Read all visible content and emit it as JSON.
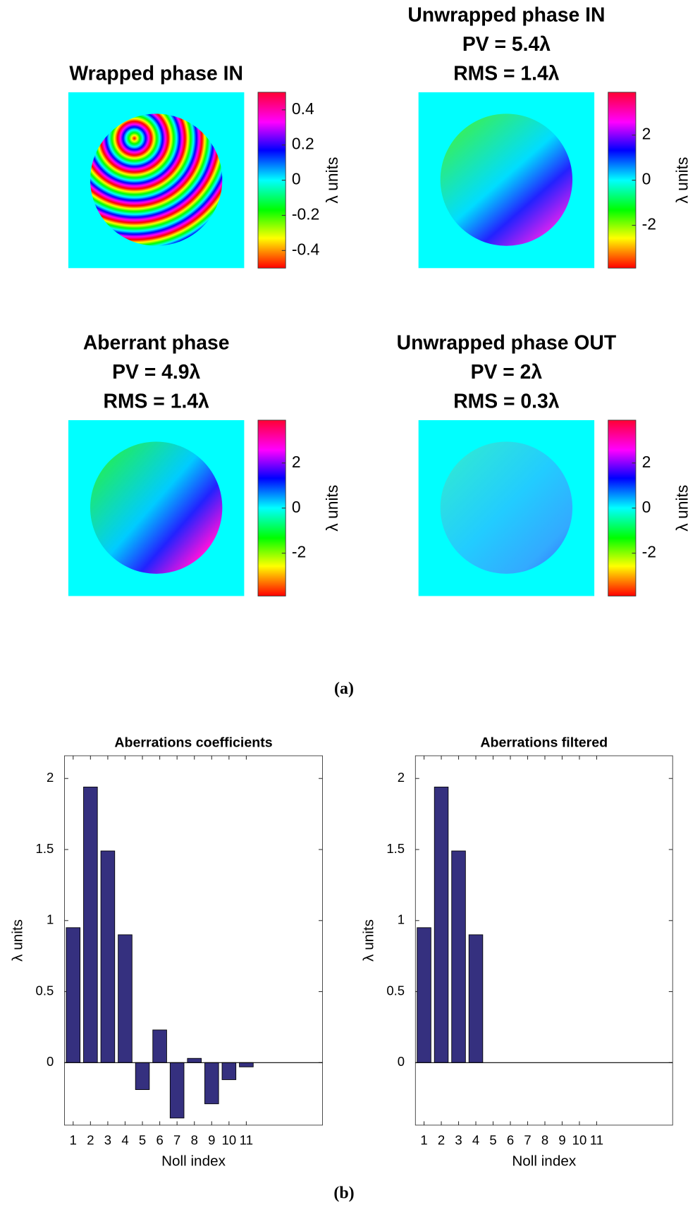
{
  "caption_a": "(a)",
  "caption_b": "(b)",
  "chart_data": [
    {
      "type": "heatmap",
      "title": [
        "Wrapped phase IN"
      ],
      "colorbar_label": "λ units",
      "clim": [
        -0.5,
        0.5
      ],
      "cticks": [
        -0.4,
        -0.2,
        0,
        0.2,
        0.4
      ]
    },
    {
      "type": "heatmap",
      "title": [
        "Unwrapped phase IN",
        "PV = 5.4λ",
        "RMS = 1.4λ"
      ],
      "colorbar_label": "λ units",
      "clim": [
        -3.9,
        3.9
      ],
      "cticks": [
        -2,
        0,
        2
      ]
    },
    {
      "type": "heatmap",
      "title": [
        "Aberrant phase",
        "PV = 4.9λ",
        "RMS = 1.4λ"
      ],
      "colorbar_label": "λ units",
      "clim": [
        -3.9,
        3.9
      ],
      "cticks": [
        -2,
        0,
        2
      ]
    },
    {
      "type": "heatmap",
      "title": [
        "Unwrapped phase OUT",
        "PV = 2λ",
        "RMS = 0.3λ"
      ],
      "colorbar_label": "λ units",
      "clim": [
        -3.9,
        3.9
      ],
      "cticks": [
        -2,
        0,
        2
      ]
    },
    {
      "type": "bar",
      "title": "Aberrations coefficients",
      "x_label": "Noll index",
      "y_label": "λ units",
      "color": "#35307f",
      "x": [
        1,
        2,
        3,
        4,
        5,
        6,
        7,
        8,
        9,
        10,
        11
      ],
      "values": [
        0.95,
        1.94,
        1.49,
        0.9,
        -0.19,
        0.23,
        -0.39,
        0.03,
        -0.29,
        -0.12,
        -0.03
      ],
      "xlim": [
        0.5,
        15.4
      ],
      "xticks": [
        1,
        2,
        3,
        4,
        5,
        6,
        7,
        8,
        9,
        10,
        11
      ],
      "ylim": [
        -0.44,
        2.16
      ],
      "yticks": [
        0,
        0.5,
        1,
        1.5,
        2
      ]
    },
    {
      "type": "bar",
      "title": "Aberrations filtered",
      "x_label": "Noll index",
      "y_label": "λ units",
      "color": "#35307f",
      "x": [
        1,
        2,
        3,
        4,
        5,
        6,
        7,
        8,
        9,
        10,
        11
      ],
      "values": [
        0.95,
        1.94,
        1.49,
        0.9,
        0,
        0,
        0,
        0,
        0,
        0,
        0
      ],
      "xlim": [
        0.5,
        15.4
      ],
      "xticks": [
        1,
        2,
        3,
        4,
        5,
        6,
        7,
        8,
        9,
        10,
        11
      ],
      "ylim": [
        -0.44,
        2.16
      ],
      "yticks": [
        0,
        0.5,
        1,
        1.5,
        2
      ]
    }
  ]
}
